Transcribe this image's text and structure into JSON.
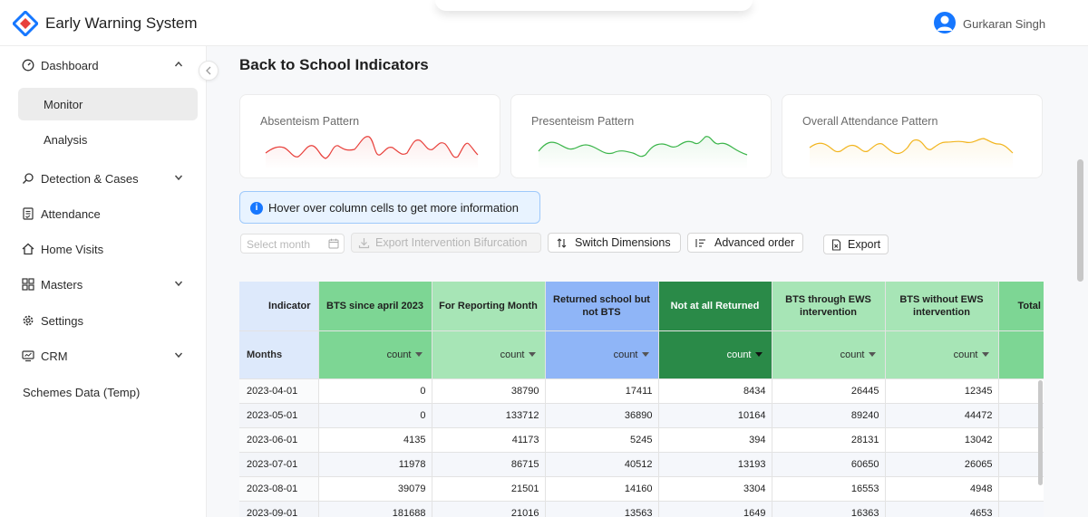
{
  "app": {
    "title": "Early Warning System"
  },
  "user": {
    "name": "Gurkaran Singh"
  },
  "sidebar": {
    "items": [
      {
        "label": "Dashboard",
        "icon": "dashboard-icon",
        "chevron": "up"
      },
      {
        "label": "Monitor",
        "sub": true,
        "active": true
      },
      {
        "label": "Analysis",
        "sub": true
      },
      {
        "label": "Detection & Cases",
        "icon": "search-icon",
        "chevron": "down"
      },
      {
        "label": "Attendance",
        "icon": "attendance-icon"
      },
      {
        "label": "Home Visits",
        "icon": "home-icon"
      },
      {
        "label": "Masters",
        "icon": "grid-icon",
        "chevron": "down"
      },
      {
        "label": "Settings",
        "icon": "gear-icon"
      },
      {
        "label": "CRM",
        "icon": "monitor-icon",
        "chevron": "down"
      },
      {
        "label": "Schemes Data (Temp)"
      }
    ]
  },
  "page": {
    "title": "Back to School Indicators"
  },
  "cards": [
    {
      "title": "Absenteism Pattern",
      "color": "#e8413c"
    },
    {
      "title": "Presenteism Pattern",
      "color": "#3bb54a"
    },
    {
      "title": "Overall Attendance Pattern",
      "color": "#f2b51f"
    }
  ],
  "info": {
    "text": "Hover over column cells to get more information"
  },
  "toolbar": {
    "month_placeholder": "Select month",
    "export_bifurcation": "Export Intervention Bifurcation",
    "switch_dimensions": "Switch Dimensions",
    "advanced_order": "Advanced order",
    "export": "Export"
  },
  "table": {
    "indicator_label": "Indicator",
    "months_label": "Months",
    "count_label": "count",
    "columns": [
      {
        "label": "BTS since april 2023",
        "color": "#7dd694"
      },
      {
        "label": "For Reporting Month",
        "color": "#a7e5b6"
      },
      {
        "label": "Returned school but not BTS",
        "color": "#8fb5f7"
      },
      {
        "label": "Not at all Returned",
        "color": "#2a8a48"
      },
      {
        "label": "BTS through EWS intervention",
        "color": "#a7e5b6"
      },
      {
        "label": "BTS without EWS intervention",
        "color": "#a7e5b6"
      },
      {
        "label": "Total through",
        "color": "#7dd694"
      }
    ],
    "rows": [
      {
        "month": "2023-04-01",
        "values": [
          "0",
          "38790",
          "17411",
          "8434",
          "26445",
          "12345",
          ""
        ]
      },
      {
        "month": "2023-05-01",
        "values": [
          "0",
          "133712",
          "36890",
          "10164",
          "89240",
          "44472",
          ""
        ]
      },
      {
        "month": "2023-06-01",
        "values": [
          "4135",
          "41173",
          "5245",
          "394",
          "28131",
          "13042",
          ""
        ]
      },
      {
        "month": "2023-07-01",
        "values": [
          "11978",
          "86715",
          "40512",
          "13193",
          "60650",
          "26065",
          ""
        ]
      },
      {
        "month": "2023-08-01",
        "values": [
          "39079",
          "21501",
          "14160",
          "3304",
          "16553",
          "4948",
          ""
        ]
      },
      {
        "month": "2023-09-01",
        "values": [
          "181688",
          "21016",
          "13563",
          "1649",
          "16363",
          "4653",
          ""
        ]
      }
    ]
  }
}
